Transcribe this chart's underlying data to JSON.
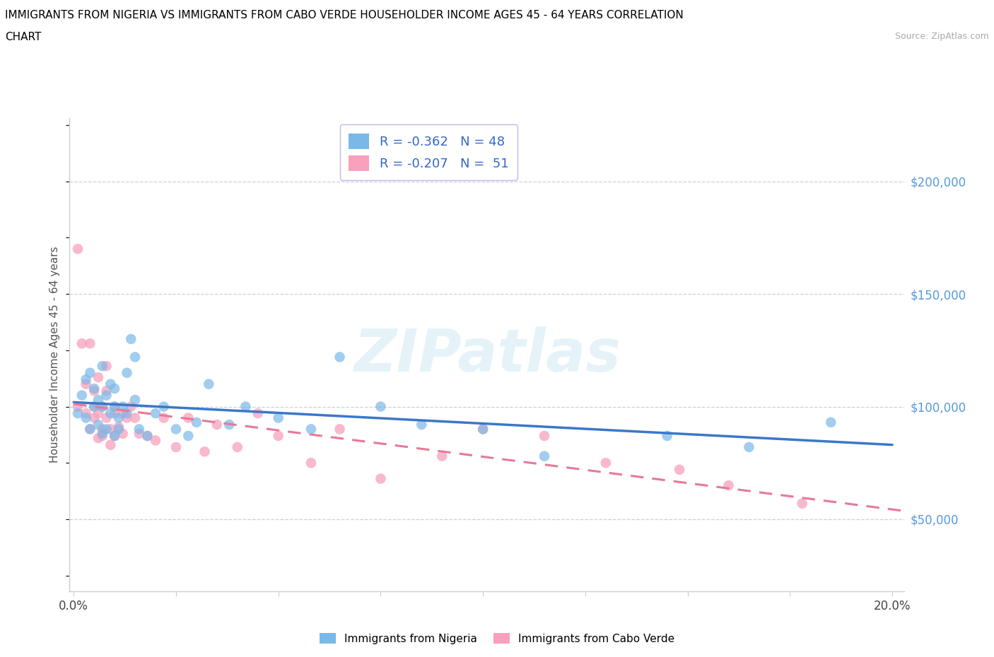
{
  "title_line1": "IMMIGRANTS FROM NIGERIA VS IMMIGRANTS FROM CABO VERDE HOUSEHOLDER INCOME AGES 45 - 64 YEARS CORRELATION",
  "title_line2": "CHART",
  "source": "Source: ZipAtlas.com",
  "ylabel": "Householder Income Ages 45 - 64 years",
  "xlim": [
    -0.001,
    0.203
  ],
  "ylim": [
    18000,
    228000
  ],
  "yticks": [
    50000,
    100000,
    150000,
    200000
  ],
  "ytick_labels": [
    "$50,000",
    "$100,000",
    "$150,000",
    "$200,000"
  ],
  "xtick_positions": [
    0.0,
    0.025,
    0.05,
    0.075,
    0.1,
    0.125,
    0.15,
    0.175,
    0.2
  ],
  "xtick_labels": [
    "0.0%",
    "",
    "",
    "",
    "",
    "",
    "",
    "",
    "20.0%"
  ],
  "watermark": "ZIPatlas",
  "nigeria_color": "#7ab8e8",
  "caboverde_color": "#f8a0bc",
  "nigeria_line_color": "#3a78c9",
  "caboverde_line_color": "#e87898",
  "legend_label1": "R = -0.362   N = 48",
  "legend_label2": "R = -0.207   N =  51",
  "bottom_label1": "Immigrants from Nigeria",
  "bottom_label2": "Immigrants from Cabo Verde",
  "nigeria_x": [
    0.001,
    0.002,
    0.003,
    0.003,
    0.004,
    0.004,
    0.005,
    0.005,
    0.006,
    0.006,
    0.007,
    0.007,
    0.007,
    0.008,
    0.008,
    0.009,
    0.009,
    0.01,
    0.01,
    0.01,
    0.011,
    0.011,
    0.012,
    0.013,
    0.013,
    0.014,
    0.015,
    0.015,
    0.016,
    0.018,
    0.02,
    0.022,
    0.025,
    0.028,
    0.03,
    0.033,
    0.038,
    0.042,
    0.05,
    0.058,
    0.065,
    0.075,
    0.085,
    0.1,
    0.115,
    0.145,
    0.165,
    0.185
  ],
  "nigeria_y": [
    97000,
    105000,
    95000,
    112000,
    90000,
    115000,
    100000,
    108000,
    92000,
    103000,
    88000,
    100000,
    118000,
    90000,
    105000,
    97000,
    110000,
    87000,
    100000,
    108000,
    95000,
    90000,
    100000,
    97000,
    115000,
    130000,
    122000,
    103000,
    90000,
    87000,
    97000,
    100000,
    90000,
    87000,
    93000,
    110000,
    92000,
    100000,
    95000,
    90000,
    122000,
    100000,
    92000,
    90000,
    78000,
    87000,
    82000,
    93000
  ],
  "caboverde_x": [
    0.001,
    0.001,
    0.002,
    0.003,
    0.003,
    0.004,
    0.004,
    0.005,
    0.005,
    0.005,
    0.006,
    0.006,
    0.006,
    0.007,
    0.007,
    0.007,
    0.008,
    0.008,
    0.008,
    0.009,
    0.009,
    0.01,
    0.01,
    0.01,
    0.011,
    0.012,
    0.012,
    0.013,
    0.014,
    0.015,
    0.016,
    0.018,
    0.02,
    0.022,
    0.025,
    0.028,
    0.032,
    0.035,
    0.04,
    0.045,
    0.05,
    0.058,
    0.065,
    0.075,
    0.09,
    0.1,
    0.115,
    0.13,
    0.148,
    0.16,
    0.178
  ],
  "caboverde_y": [
    170000,
    100000,
    128000,
    110000,
    97000,
    90000,
    128000,
    100000,
    95000,
    107000,
    86000,
    97000,
    113000,
    90000,
    100000,
    87000,
    107000,
    118000,
    95000,
    83000,
    90000,
    100000,
    87000,
    97000,
    91000,
    88000,
    97000,
    95000,
    100000,
    95000,
    88000,
    87000,
    85000,
    95000,
    82000,
    95000,
    80000,
    92000,
    82000,
    97000,
    87000,
    75000,
    90000,
    68000,
    78000,
    90000,
    87000,
    75000,
    72000,
    65000,
    57000
  ]
}
